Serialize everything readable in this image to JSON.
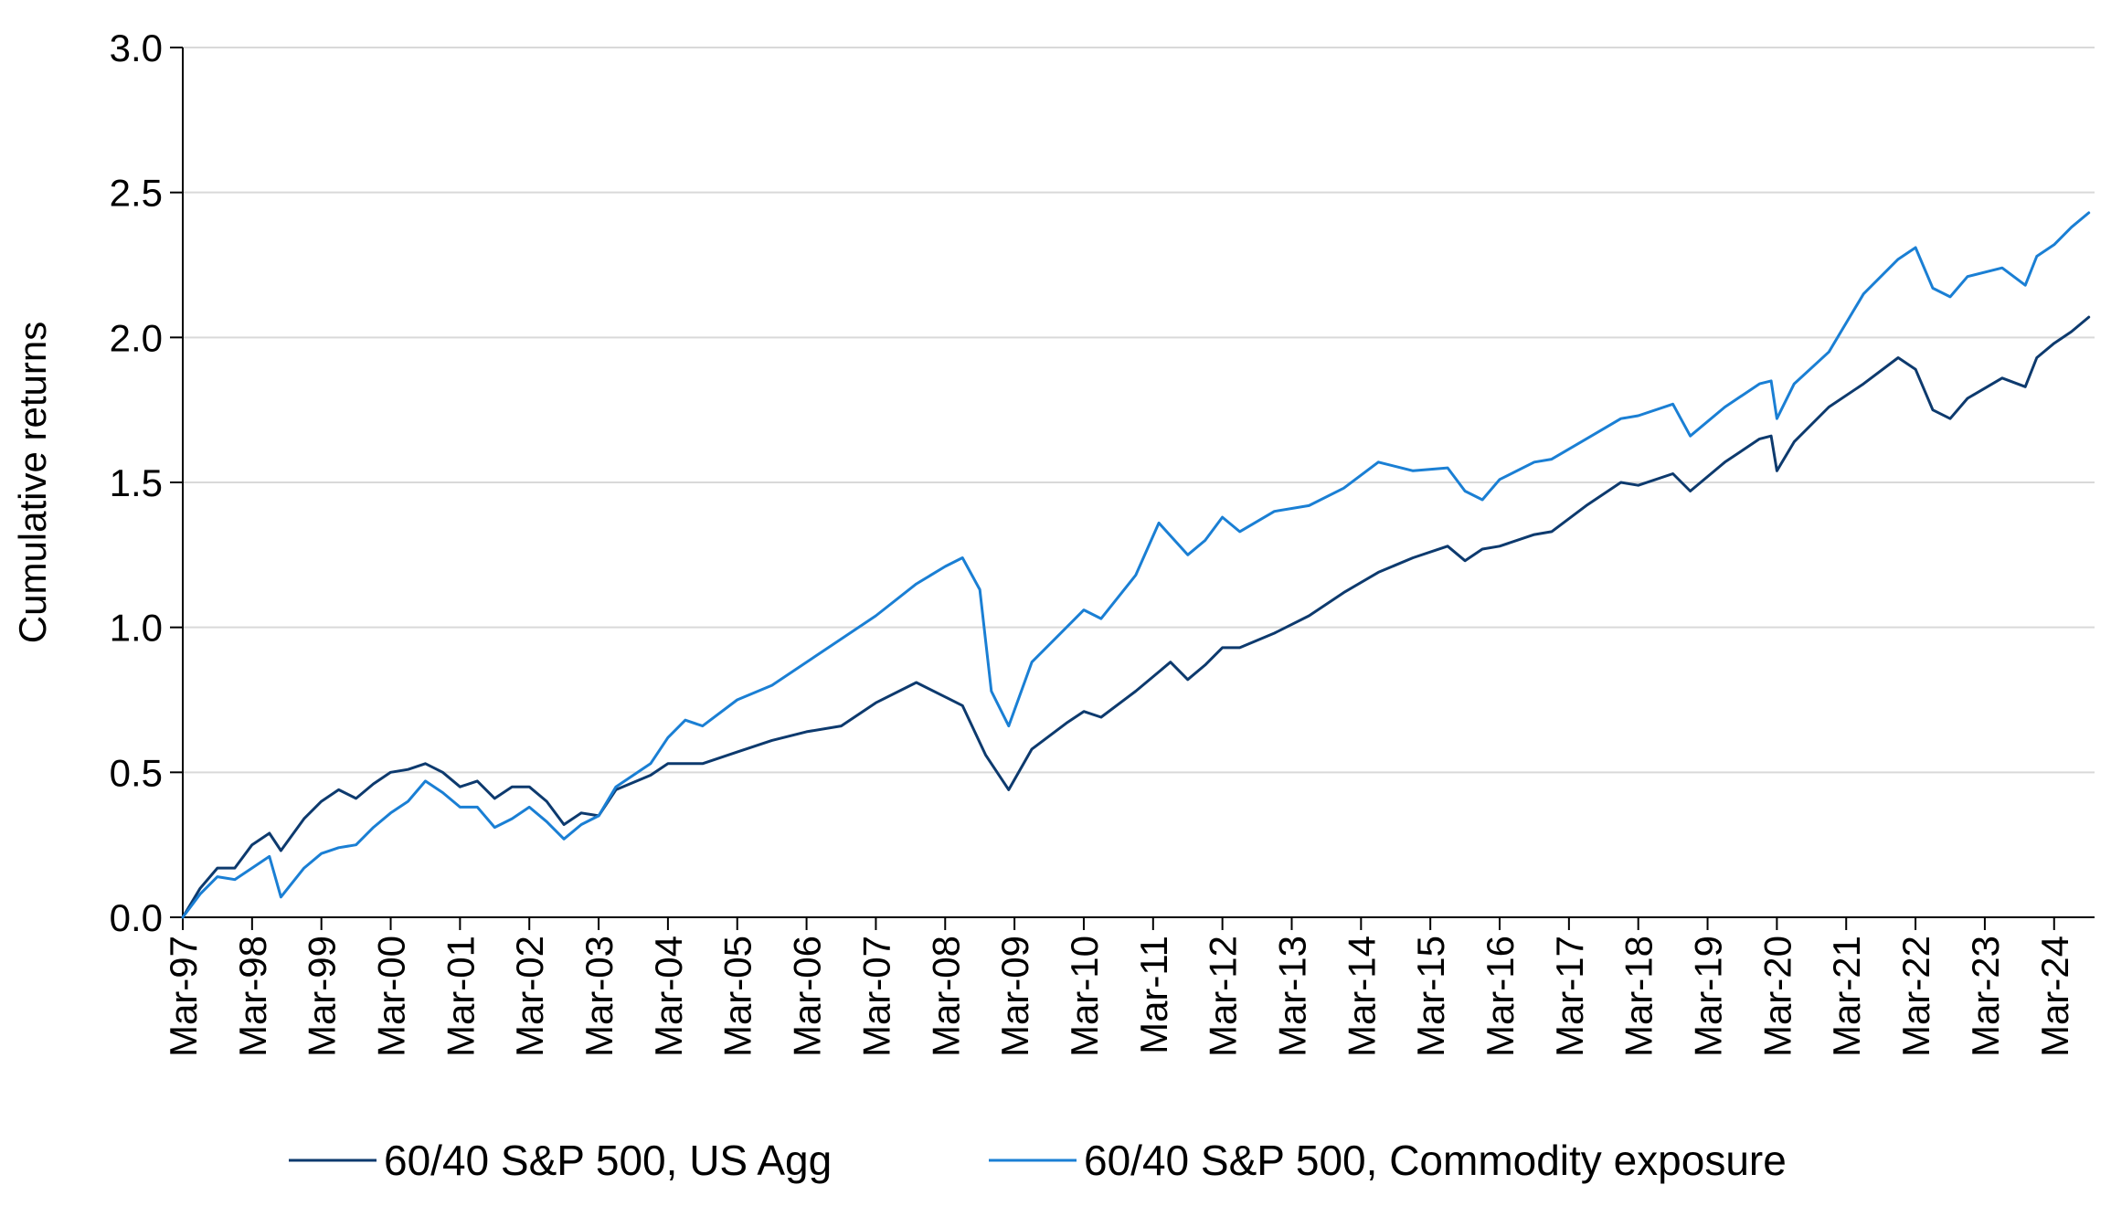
{
  "chart_data": {
    "type": "line",
    "title": "",
    "xlabel": "",
    "ylabel": "Cumulative returns",
    "ylim": [
      0,
      3.0
    ],
    "yticks": [
      "0.0",
      "0.5",
      "1.0",
      "1.5",
      "2.0",
      "2.5",
      "3.0"
    ],
    "xlim": [
      "1997-03",
      "2024-10"
    ],
    "xticks": [
      "Mar-97",
      "Mar-98",
      "Mar-99",
      "Mar-00",
      "Mar-01",
      "Mar-02",
      "Mar-03",
      "Mar-04",
      "Mar-05",
      "Mar-06",
      "Mar-07",
      "Mar-08",
      "Mar-09",
      "Mar-10",
      "Mar-11",
      "Mar-12",
      "Mar-13",
      "Mar-14",
      "Mar-15",
      "Mar-16",
      "Mar-17",
      "Mar-18",
      "Mar-19",
      "Mar-20",
      "Mar-21",
      "Mar-22",
      "Mar-23",
      "Mar-24"
    ],
    "grid": "horizontal",
    "legend_position": "bottom",
    "colors": {
      "series1": "#0d3a6e",
      "series2": "#1a7fd4",
      "grid": "#d9d9d9",
      "axis": "#000000"
    },
    "series": [
      {
        "name": "60/40 S&P 500, US Agg",
        "color": "#0d3a6e",
        "points": [
          [
            "1997-03",
            0.0
          ],
          [
            "1997-06",
            0.1
          ],
          [
            "1997-09",
            0.17
          ],
          [
            "1997-12",
            0.17
          ],
          [
            "1998-03",
            0.25
          ],
          [
            "1998-06",
            0.29
          ],
          [
            "1998-08",
            0.23
          ],
          [
            "1998-12",
            0.34
          ],
          [
            "1999-03",
            0.4
          ],
          [
            "1999-06",
            0.44
          ],
          [
            "1999-09",
            0.41
          ],
          [
            "1999-12",
            0.46
          ],
          [
            "2000-03",
            0.5
          ],
          [
            "2000-06",
            0.51
          ],
          [
            "2000-09",
            0.53
          ],
          [
            "2000-12",
            0.5
          ],
          [
            "2001-03",
            0.45
          ],
          [
            "2001-06",
            0.47
          ],
          [
            "2001-09",
            0.41
          ],
          [
            "2001-12",
            0.45
          ],
          [
            "2002-03",
            0.45
          ],
          [
            "2002-06",
            0.4
          ],
          [
            "2002-09",
            0.32
          ],
          [
            "2002-12",
            0.36
          ],
          [
            "2003-03",
            0.35
          ],
          [
            "2003-06",
            0.44
          ],
          [
            "2003-12",
            0.49
          ],
          [
            "2004-03",
            0.53
          ],
          [
            "2004-09",
            0.53
          ],
          [
            "2005-03",
            0.57
          ],
          [
            "2005-09",
            0.61
          ],
          [
            "2006-03",
            0.64
          ],
          [
            "2006-09",
            0.66
          ],
          [
            "2007-03",
            0.74
          ],
          [
            "2007-10",
            0.81
          ],
          [
            "2008-03",
            0.76
          ],
          [
            "2008-06",
            0.73
          ],
          [
            "2008-10",
            0.56
          ],
          [
            "2009-02",
            0.44
          ],
          [
            "2009-06",
            0.58
          ],
          [
            "2009-12",
            0.67
          ],
          [
            "2010-03",
            0.71
          ],
          [
            "2010-06",
            0.69
          ],
          [
            "2010-12",
            0.78
          ],
          [
            "2011-06",
            0.88
          ],
          [
            "2011-09",
            0.82
          ],
          [
            "2011-12",
            0.87
          ],
          [
            "2012-03",
            0.93
          ],
          [
            "2012-06",
            0.93
          ],
          [
            "2012-12",
            0.98
          ],
          [
            "2013-06",
            1.04
          ],
          [
            "2013-12",
            1.12
          ],
          [
            "2014-06",
            1.19
          ],
          [
            "2014-12",
            1.24
          ],
          [
            "2015-06",
            1.28
          ],
          [
            "2015-09",
            1.23
          ],
          [
            "2015-12",
            1.27
          ],
          [
            "2016-03",
            1.28
          ],
          [
            "2016-09",
            1.32
          ],
          [
            "2016-12",
            1.33
          ],
          [
            "2017-06",
            1.42
          ],
          [
            "2017-12",
            1.5
          ],
          [
            "2018-03",
            1.49
          ],
          [
            "2018-09",
            1.53
          ],
          [
            "2018-12",
            1.47
          ],
          [
            "2019-06",
            1.57
          ],
          [
            "2019-12",
            1.65
          ],
          [
            "2020-02",
            1.66
          ],
          [
            "2020-03",
            1.54
          ],
          [
            "2020-06",
            1.64
          ],
          [
            "2020-12",
            1.76
          ],
          [
            "2021-06",
            1.84
          ],
          [
            "2021-12",
            1.93
          ],
          [
            "2022-03",
            1.89
          ],
          [
            "2022-06",
            1.75
          ],
          [
            "2022-09",
            1.72
          ],
          [
            "2022-12",
            1.79
          ],
          [
            "2023-06",
            1.86
          ],
          [
            "2023-10",
            1.83
          ],
          [
            "2023-12",
            1.93
          ],
          [
            "2024-03",
            1.98
          ],
          [
            "2024-06",
            2.02
          ],
          [
            "2024-09",
            2.07
          ]
        ]
      },
      {
        "name": "60/40 S&P 500, Commodity exposure",
        "color": "#1a7fd4",
        "points": [
          [
            "1997-03",
            0.0
          ],
          [
            "1997-06",
            0.08
          ],
          [
            "1997-09",
            0.14
          ],
          [
            "1997-12",
            0.13
          ],
          [
            "1998-03",
            0.17
          ],
          [
            "1998-06",
            0.21
          ],
          [
            "1998-08",
            0.07
          ],
          [
            "1998-12",
            0.17
          ],
          [
            "1999-03",
            0.22
          ],
          [
            "1999-06",
            0.24
          ],
          [
            "1999-09",
            0.25
          ],
          [
            "1999-12",
            0.31
          ],
          [
            "2000-03",
            0.36
          ],
          [
            "2000-06",
            0.4
          ],
          [
            "2000-09",
            0.47
          ],
          [
            "2000-12",
            0.43
          ],
          [
            "2001-03",
            0.38
          ],
          [
            "2001-06",
            0.38
          ],
          [
            "2001-09",
            0.31
          ],
          [
            "2001-12",
            0.34
          ],
          [
            "2002-03",
            0.38
          ],
          [
            "2002-06",
            0.33
          ],
          [
            "2002-09",
            0.27
          ],
          [
            "2002-12",
            0.32
          ],
          [
            "2003-03",
            0.35
          ],
          [
            "2003-06",
            0.45
          ],
          [
            "2003-12",
            0.53
          ],
          [
            "2004-03",
            0.62
          ],
          [
            "2004-06",
            0.68
          ],
          [
            "2004-09",
            0.66
          ],
          [
            "2005-03",
            0.75
          ],
          [
            "2005-09",
            0.8
          ],
          [
            "2006-03",
            0.88
          ],
          [
            "2006-09",
            0.96
          ],
          [
            "2007-03",
            1.04
          ],
          [
            "2007-10",
            1.15
          ],
          [
            "2008-03",
            1.21
          ],
          [
            "2008-06",
            1.24
          ],
          [
            "2008-09",
            1.13
          ],
          [
            "2008-11",
            0.78
          ],
          [
            "2009-02",
            0.66
          ],
          [
            "2009-06",
            0.88
          ],
          [
            "2009-12",
            1.0
          ],
          [
            "2010-03",
            1.06
          ],
          [
            "2010-06",
            1.03
          ],
          [
            "2010-12",
            1.18
          ],
          [
            "2011-04",
            1.36
          ],
          [
            "2011-09",
            1.25
          ],
          [
            "2011-12",
            1.3
          ],
          [
            "2012-03",
            1.38
          ],
          [
            "2012-06",
            1.33
          ],
          [
            "2012-12",
            1.4
          ],
          [
            "2013-06",
            1.42
          ],
          [
            "2013-12",
            1.48
          ],
          [
            "2014-06",
            1.57
          ],
          [
            "2014-12",
            1.54
          ],
          [
            "2015-06",
            1.55
          ],
          [
            "2015-09",
            1.47
          ],
          [
            "2015-12",
            1.44
          ],
          [
            "2016-03",
            1.51
          ],
          [
            "2016-09",
            1.57
          ],
          [
            "2016-12",
            1.58
          ],
          [
            "2017-06",
            1.65
          ],
          [
            "2017-12",
            1.72
          ],
          [
            "2018-03",
            1.73
          ],
          [
            "2018-09",
            1.77
          ],
          [
            "2018-12",
            1.66
          ],
          [
            "2019-06",
            1.76
          ],
          [
            "2019-12",
            1.84
          ],
          [
            "2020-02",
            1.85
          ],
          [
            "2020-03",
            1.72
          ],
          [
            "2020-06",
            1.84
          ],
          [
            "2020-12",
            1.95
          ],
          [
            "2021-06",
            2.15
          ],
          [
            "2021-12",
            2.27
          ],
          [
            "2022-03",
            2.31
          ],
          [
            "2022-06",
            2.17
          ],
          [
            "2022-09",
            2.14
          ],
          [
            "2022-12",
            2.21
          ],
          [
            "2023-06",
            2.24
          ],
          [
            "2023-10",
            2.18
          ],
          [
            "2023-12",
            2.28
          ],
          [
            "2024-03",
            2.32
          ],
          [
            "2024-06",
            2.38
          ],
          [
            "2024-09",
            2.43
          ]
        ]
      }
    ]
  }
}
